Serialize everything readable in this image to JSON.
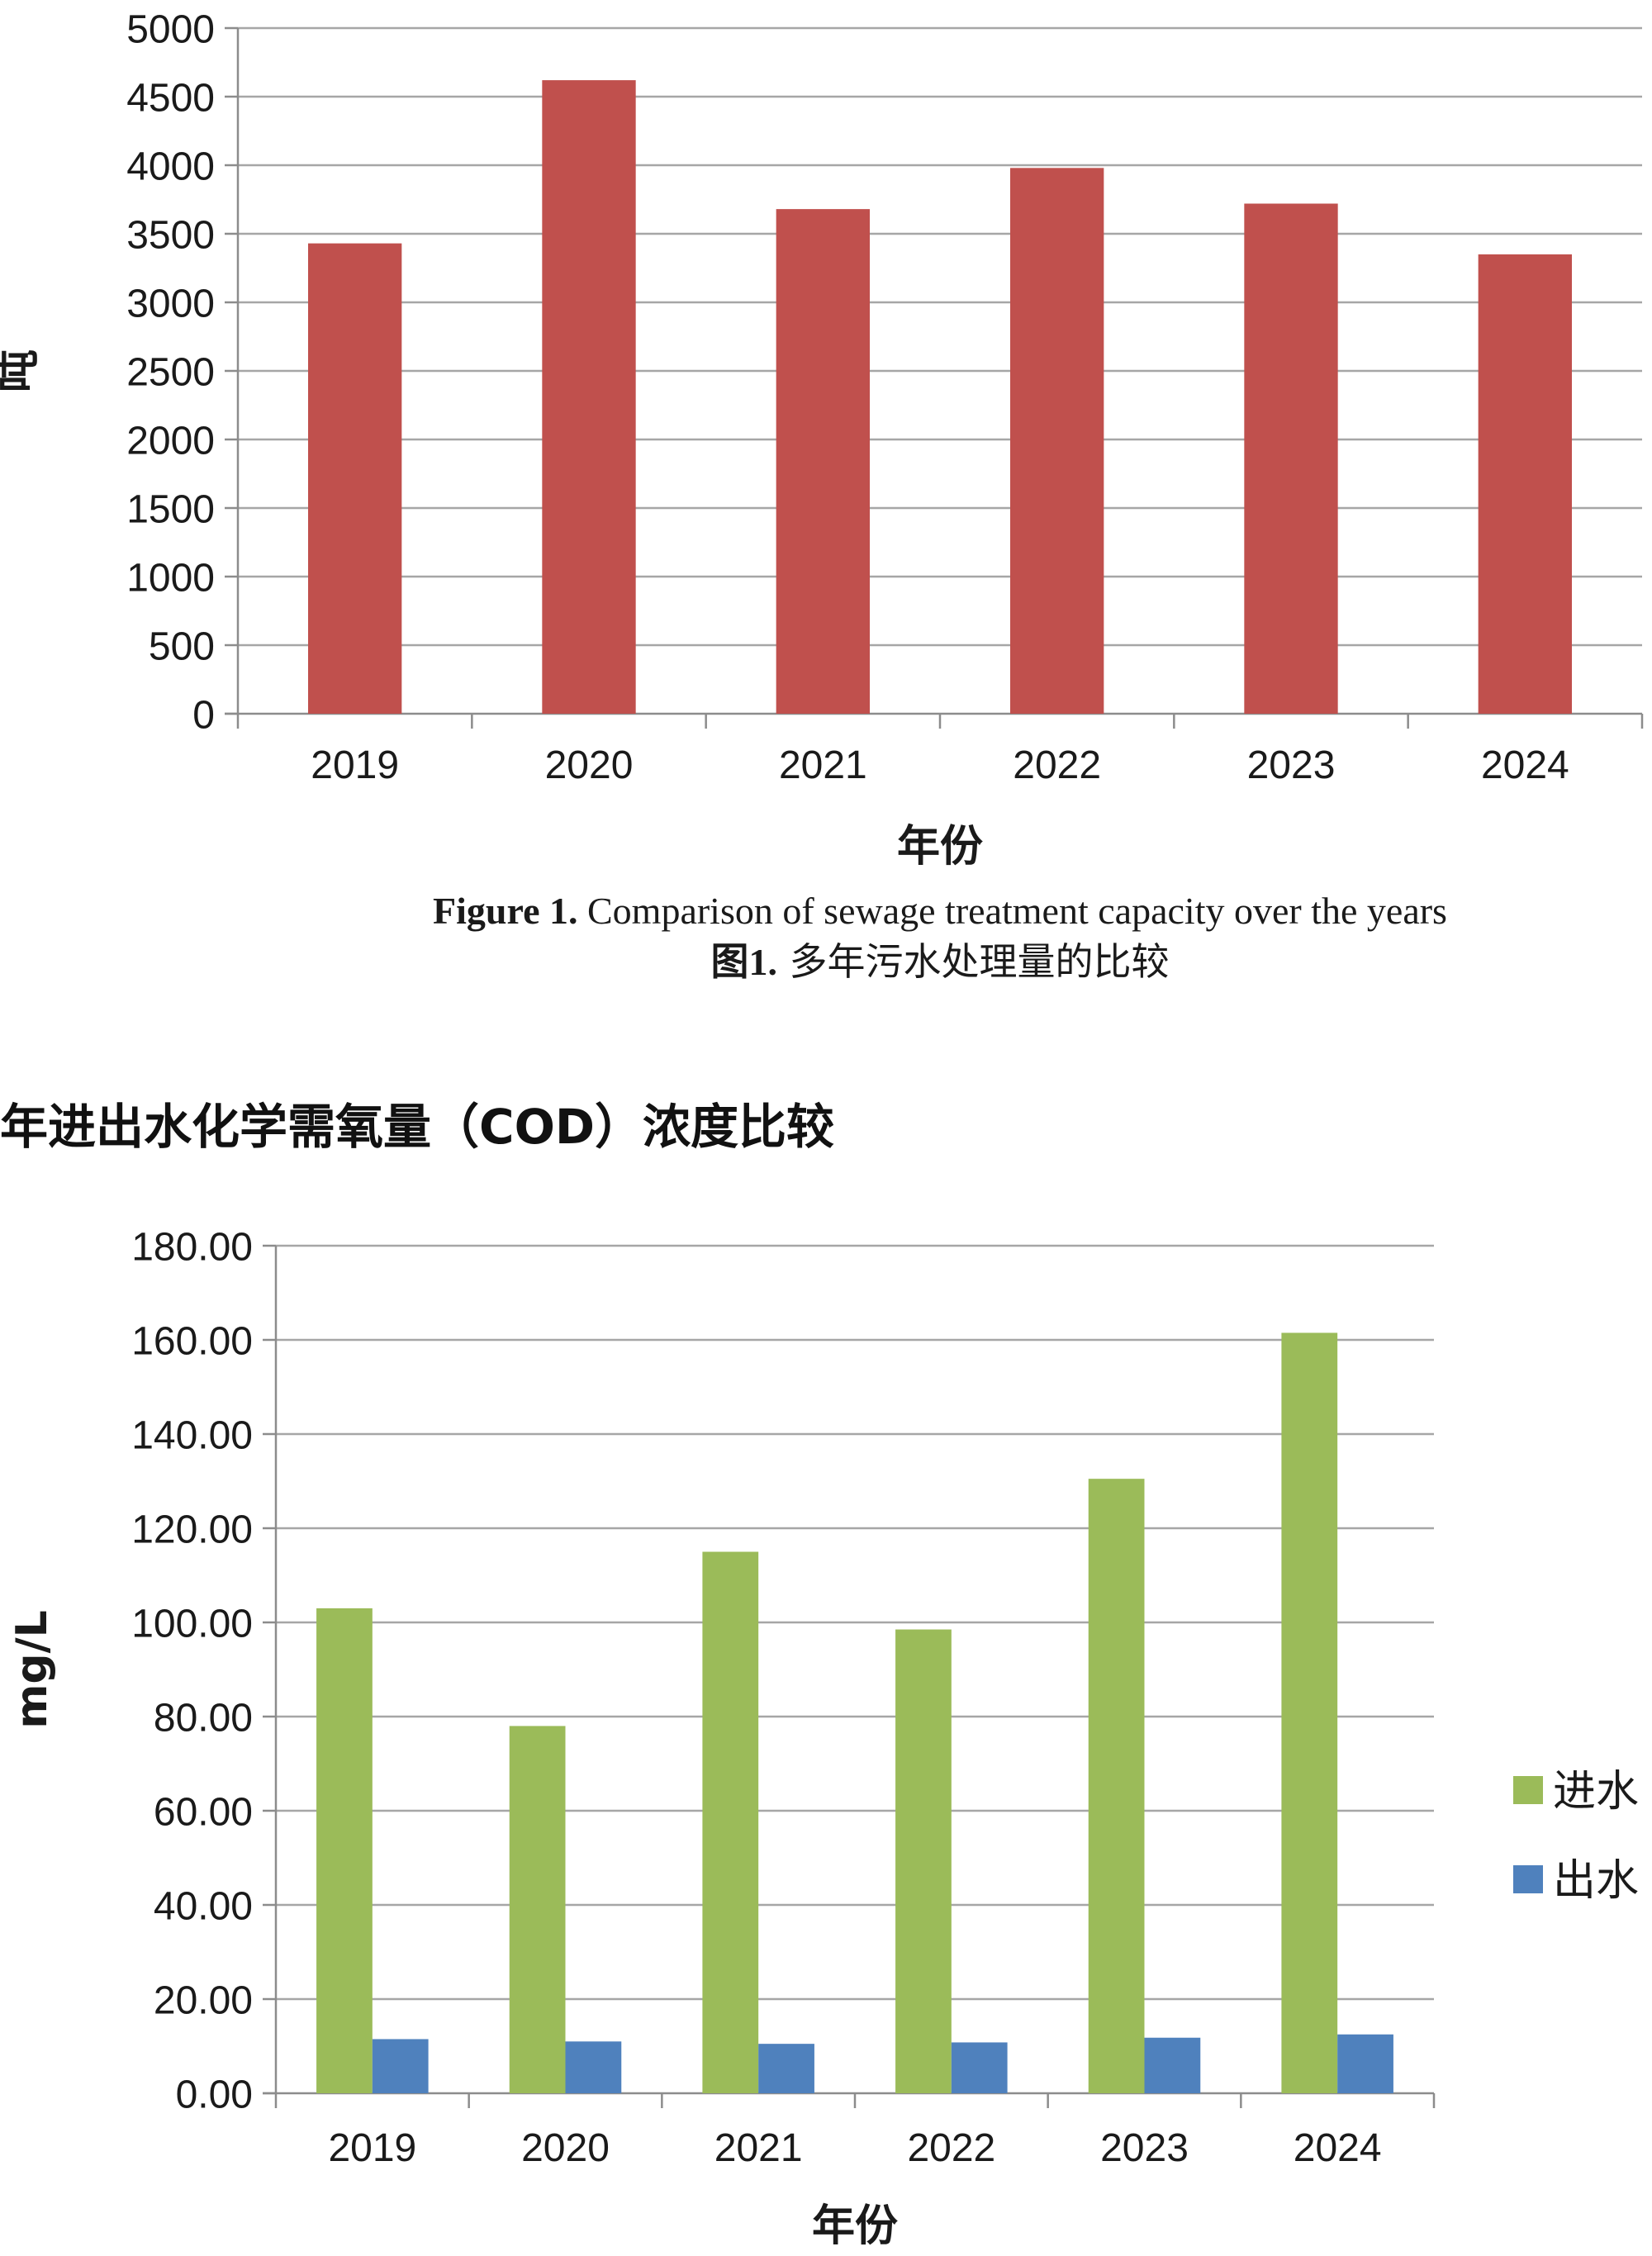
{
  "chart_data": [
    {
      "type": "bar",
      "categories": [
        "2019",
        "2020",
        "2021",
        "2022",
        "2023",
        "2024"
      ],
      "values": [
        3430,
        4620,
        3680,
        3980,
        3720,
        3350
      ],
      "ylim": [
        0,
        5000
      ],
      "yticks": [
        "0",
        "500",
        "1000",
        "1500",
        "2000",
        "2500",
        "3000",
        "3500",
        "4000",
        "4500",
        "5000"
      ],
      "ylabel": "吨",
      "xlabel": "年份",
      "grid": true,
      "colors": {
        "bar": "#c0504d"
      }
    },
    {
      "type": "bar",
      "categories": [
        "2019",
        "2020",
        "2021",
        "2022",
        "2023",
        "2024"
      ],
      "series": [
        {
          "name": "进水",
          "values": [
            103.0,
            78.0,
            115.0,
            98.5,
            130.5,
            161.5
          ],
          "color": "#9bbb59"
        },
        {
          "name": "出水",
          "values": [
            11.5,
            11.0,
            10.5,
            10.8,
            11.8,
            12.5
          ],
          "color": "#4f81bd"
        }
      ],
      "ylim": [
        0,
        180
      ],
      "yticks": [
        "0.00",
        "20.00",
        "40.00",
        "60.00",
        "80.00",
        "100.00",
        "120.00",
        "140.00",
        "160.00",
        "180.00"
      ],
      "ylabel": "mg/L",
      "xlabel": "年份",
      "grid": true,
      "legend_position": "right"
    }
  ],
  "figure1_caption": {
    "en_bold": "Figure 1.",
    "en_text": " Comparison of sewage treatment capacity over the years",
    "zh_bold": "图1.",
    "zh_text": " 多年污水处理量的比较"
  },
  "section_heading": "年进出水化学需氧量（COD）浓度比较"
}
